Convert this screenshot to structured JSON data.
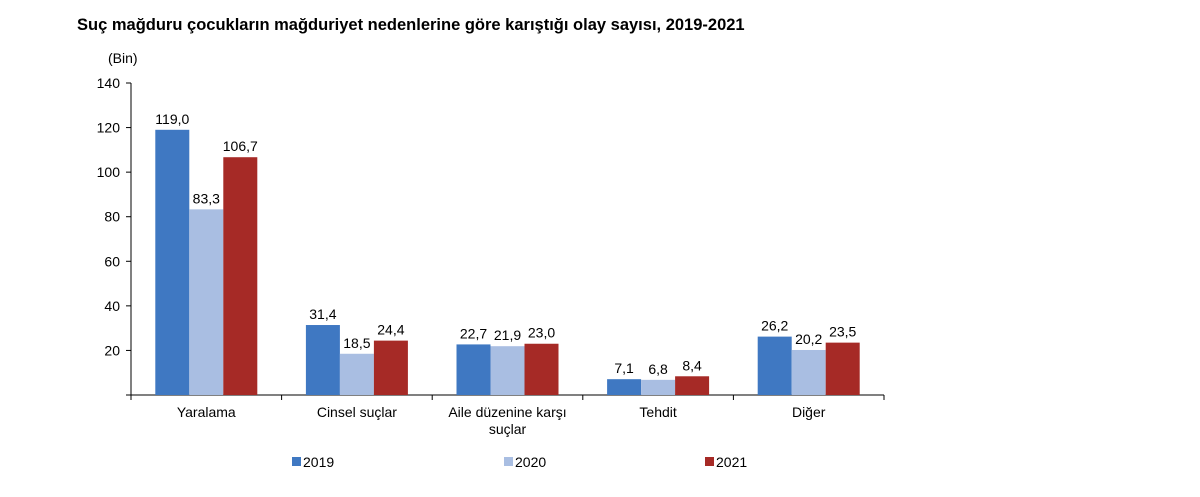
{
  "title": "Suç mağduru çocukların mağduriyet nedenlerine göre karıştığı olay sayısı, 2019-2021",
  "chart_data": {
    "type": "bar",
    "title": "Suç mağduru çocukların mağduriyet nedenlerine göre karıştığı olay sayısı, 2019-2021",
    "unit_label": "(Bin)",
    "xlabel": "",
    "ylabel": "",
    "ylim": [
      0,
      140
    ],
    "yticks": [
      "0",
      "20",
      "40",
      "60",
      "80",
      "100",
      "120",
      "140"
    ],
    "grid": false,
    "legend": "bottom",
    "categories": [
      [
        "Yaralama"
      ],
      [
        "Cinsel suçlar"
      ],
      [
        "Aile düzenine karşı",
        "suçlar"
      ],
      [
        "Tehdit"
      ],
      [
        "Diğer"
      ]
    ],
    "series": [
      {
        "name": "2019",
        "color": "#3F78C2",
        "values": [
          119.0,
          31.4,
          22.7,
          7.1,
          26.2
        ],
        "labels": [
          "119,0",
          "31,4",
          "22,7",
          "7,1",
          "26,2"
        ]
      },
      {
        "name": "2020",
        "color": "#A9BEE2",
        "values": [
          83.3,
          18.5,
          21.9,
          6.8,
          20.2
        ],
        "labels": [
          "83,3",
          "18,5",
          "21,9",
          "6,8",
          "20,2"
        ]
      },
      {
        "name": "2021",
        "color": "#A62A26",
        "values": [
          106.7,
          24.4,
          23.0,
          8.4,
          23.5
        ],
        "labels": [
          "106,7",
          "24,4",
          "23,0",
          "8,4",
          "23,5"
        ]
      }
    ]
  }
}
